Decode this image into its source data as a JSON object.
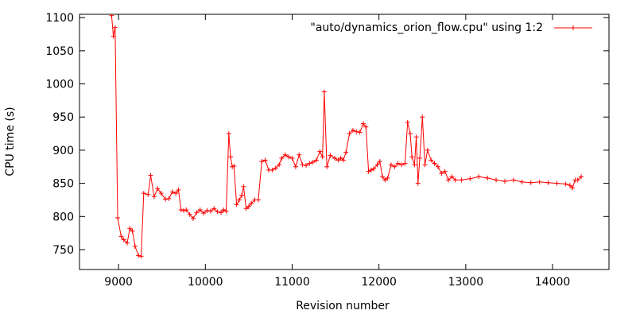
{
  "chart_data": {
    "type": "line",
    "title": "",
    "xlabel": "Revision number",
    "ylabel": "CPU time (s)",
    "xlim": [
      8550,
      14650
    ],
    "ylim": [
      720,
      1105
    ],
    "x_ticks": [
      9000,
      10000,
      11000,
      12000,
      13000,
      14000
    ],
    "y_ticks": [
      750,
      800,
      850,
      900,
      950,
      1000,
      1050,
      1100
    ],
    "grid": false,
    "legend_position": "top-right",
    "colors": {
      "series": "#ff0000",
      "axes": "#000000",
      "background": "#ffffff"
    },
    "series": [
      {
        "name": "\"auto/dynamics_orion_flow.cpu\" using 1:2",
        "marker": "plus",
        "x": [
          8920,
          8940,
          8960,
          8990,
          9030,
          9060,
          9100,
          9130,
          9160,
          9190,
          9230,
          9260,
          9290,
          9340,
          9370,
          9410,
          9450,
          9490,
          9540,
          9580,
          9620,
          9660,
          9690,
          9720,
          9750,
          9780,
          9820,
          9860,
          9900,
          9940,
          9980,
          10020,
          10060,
          10100,
          10140,
          10180,
          10210,
          10240,
          10270,
          10290,
          10310,
          10330,
          10360,
          10390,
          10420,
          10440,
          10470,
          10500,
          10530,
          10570,
          10610,
          10650,
          10690,
          10730,
          10770,
          10810,
          10850,
          10880,
          10920,
          10960,
          11000,
          11040,
          11080,
          11120,
          11160,
          11200,
          11240,
          11280,
          11320,
          11350,
          11370,
          11400,
          11440,
          11490,
          11530,
          11560,
          11590,
          11620,
          11660,
          11700,
          11740,
          11780,
          11820,
          11850,
          11880,
          11910,
          11940,
          11980,
          12010,
          12040,
          12070,
          12100,
          12140,
          12180,
          12220,
          12260,
          12300,
          12330,
          12360,
          12380,
          12410,
          12430,
          12450,
          12470,
          12500,
          12530,
          12560,
          12600,
          12640,
          12680,
          12720,
          12760,
          12800,
          12840,
          12880,
          12950,
          13050,
          13150,
          13250,
          13350,
          13450,
          13550,
          13650,
          13750,
          13850,
          13950,
          14050,
          14150,
          14200,
          14230,
          14260,
          14290,
          14330
        ],
        "y": [
          1103,
          1072,
          1085,
          798,
          770,
          765,
          760,
          782,
          778,
          755,
          741,
          740,
          835,
          833,
          862,
          830,
          842,
          835,
          826,
          827,
          837,
          835,
          840,
          810,
          809,
          810,
          803,
          797,
          806,
          810,
          805,
          809,
          808,
          812,
          807,
          806,
          810,
          808,
          925,
          890,
          875,
          876,
          818,
          825,
          832,
          845,
          812,
          815,
          820,
          825,
          825,
          883,
          885,
          870,
          870,
          873,
          878,
          888,
          893,
          890,
          888,
          875,
          893,
          878,
          877,
          880,
          882,
          885,
          898,
          890,
          988,
          875,
          892,
          888,
          885,
          888,
          885,
          897,
          925,
          930,
          928,
          927,
          940,
          935,
          868,
          870,
          872,
          878,
          883,
          860,
          855,
          858,
          878,
          875,
          880,
          878,
          880,
          942,
          925,
          890,
          878,
          920,
          850,
          888,
          950,
          878,
          900,
          885,
          880,
          875,
          865,
          868,
          855,
          860,
          855,
          855,
          857,
          860,
          858,
          855,
          853,
          855,
          852,
          851,
          852,
          851,
          850,
          849,
          847,
          843,
          855,
          855,
          860
        ]
      }
    ]
  }
}
